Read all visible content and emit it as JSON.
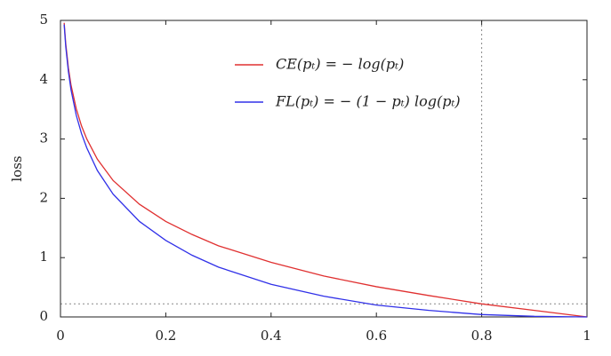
{
  "chart_data": {
    "type": "line",
    "ylabel": "loss",
    "x": [
      0.007,
      0.01,
      0.015,
      0.02,
      0.03,
      0.04,
      0.05,
      0.07,
      0.1,
      0.15,
      0.2,
      0.25,
      0.3,
      0.4,
      0.5,
      0.6,
      0.7,
      0.8,
      0.9,
      1
    ],
    "series": [
      {
        "name": "CE(pₜ) = − log(pₜ)",
        "color": "#e03030",
        "values": [
          4.96,
          4.61,
          4.2,
          3.91,
          3.51,
          3.22,
          3.0,
          2.66,
          2.3,
          1.9,
          1.61,
          1.39,
          1.2,
          0.92,
          0.69,
          0.51,
          0.36,
          0.22,
          0.11,
          0
        ]
      },
      {
        "name": "FL(pₜ) = − (1 − pₜ) log(pₜ)",
        "color": "#3030e8",
        "values": [
          4.93,
          4.56,
          4.14,
          3.83,
          3.4,
          3.09,
          2.85,
          2.47,
          2.07,
          1.61,
          1.29,
          1.04,
          0.84,
          0.55,
          0.35,
          0.2,
          0.11,
          0.04,
          0.01,
          0
        ]
      }
    ],
    "xlim": [
      0,
      1
    ],
    "xticks": [
      0,
      0.2,
      0.4,
      0.6,
      0.8,
      1
    ],
    "ylim": [
      0,
      5
    ],
    "yticks": [
      0,
      1,
      2,
      3,
      4,
      5
    ],
    "vlines": [
      0.8
    ],
    "hlines": [
      0.22
    ]
  }
}
